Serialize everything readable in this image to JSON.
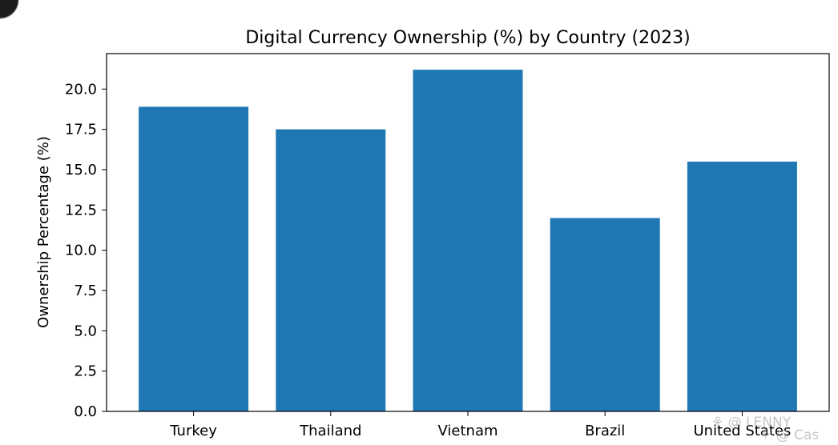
{
  "chart_data": {
    "type": "bar",
    "title": "Digital Currency Ownership (%) by Country (2023)",
    "xlabel": "",
    "ylabel": "Ownership Percentage (%)",
    "categories": [
      "Turkey",
      "Thailand",
      "Vietnam",
      "Brazil",
      "United States"
    ],
    "values": [
      18.9,
      17.5,
      21.2,
      12.0,
      15.5
    ],
    "ylim": [
      0,
      22.2
    ],
    "yticks": [
      "0.0",
      "2.5",
      "5.0",
      "7.5",
      "10.0",
      "12.5",
      "15.0",
      "17.5",
      "20.0"
    ],
    "bar_color": "#1f77b4",
    "grid": false,
    "legend": "none"
  },
  "watermark": {
    "line1": "⚘ @ LENNY",
    "line2": "⚘ @ Cas"
  }
}
